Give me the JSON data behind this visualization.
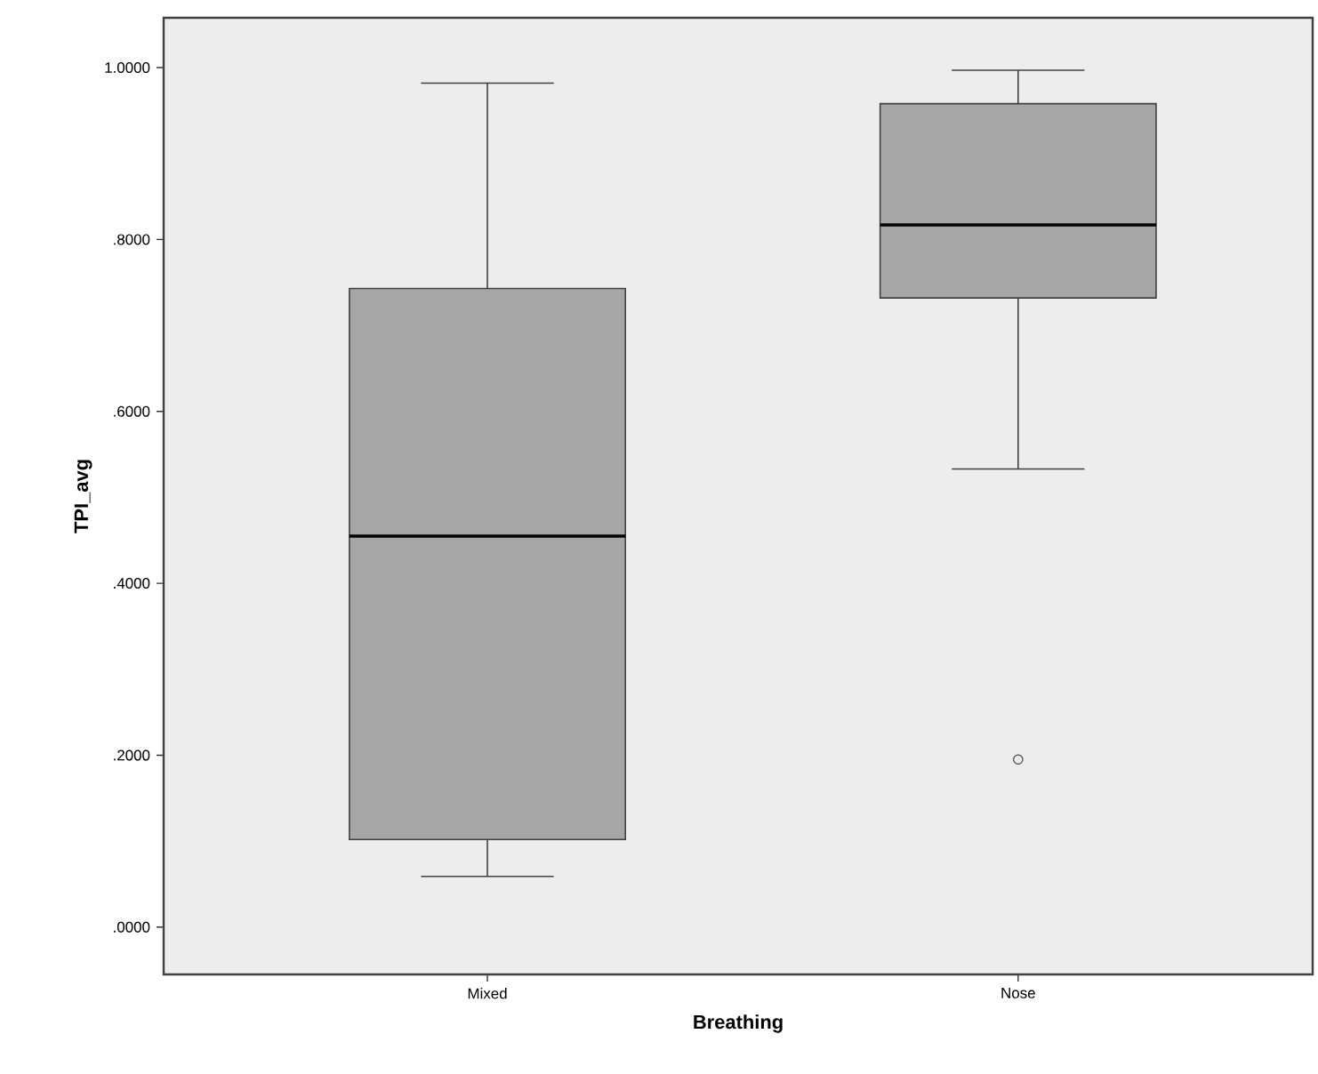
{
  "chart_data": {
    "type": "box",
    "xlabel": "Breathing",
    "ylabel": "TPI_avg",
    "categories": [
      "Mixed",
      "Nose"
    ],
    "boxes": [
      {
        "low": 0.059,
        "q1": 0.102,
        "median": 0.455,
        "q3": 0.743,
        "high": 0.982
      },
      {
        "low": 0.533,
        "q1": 0.732,
        "median": 0.817,
        "q3": 0.958,
        "high": 0.997,
        "outliers": [
          0.195
        ]
      }
    ],
    "color": "#a6a6a6",
    "ylim": [
      -0.055,
      1.058
    ],
    "yticks": [
      {
        "value": 0,
        "label": ".0000"
      },
      {
        "value": 0.2,
        "label": ".2000"
      },
      {
        "value": 0.4,
        "label": ".4000"
      },
      {
        "value": 0.6,
        "label": ".6000"
      },
      {
        "value": 0.8,
        "label": ".8000"
      },
      {
        "value": 1,
        "label": "1.0000"
      }
    ],
    "grid": false
  }
}
